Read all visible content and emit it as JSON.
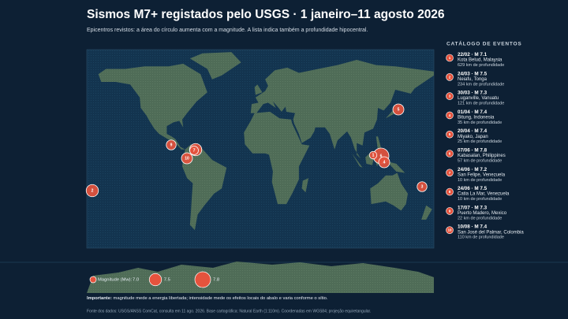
{
  "header": {
    "title": "Sismos M7+ registados pelo USGS · 1 janeiro–11 agosto 2026",
    "subtitle": "Epicentros revistos: a área do círculo aumenta com a magnitude. A lista indica também a profundidade hipocentral."
  },
  "catalog": {
    "title": "CATÁLOGO DE EVENTOS",
    "separator": "·",
    "events": [
      {
        "number": "1",
        "date": "22/02",
        "magnitude": {
          "value": 7.1,
          "label": "M 7.1"
        },
        "place": "Kota Belud, Malaysia",
        "depth": "629 km de profundidade"
      },
      {
        "number": "2",
        "date": "24/03",
        "magnitude": {
          "value": 7.5,
          "label": "M 7.5"
        },
        "place": "Neiafu, Tonga",
        "depth": "234 km de profundidade"
      },
      {
        "number": "3",
        "date": "30/03",
        "magnitude": {
          "value": 7.3,
          "label": "M 7.3"
        },
        "place": "Luganville, Vanuatu",
        "depth": "121 km de profundidade"
      },
      {
        "number": "4",
        "date": "01/04",
        "magnitude": {
          "value": 7.4,
          "label": "M 7.4"
        },
        "place": "Bitung, Indonesia",
        "depth": "35 km de profundidade"
      },
      {
        "number": "5",
        "date": "20/04",
        "magnitude": {
          "value": 7.4,
          "label": "M 7.4"
        },
        "place": "Miyako, Japan",
        "depth": "25 km de profundidade"
      },
      {
        "number": "6",
        "date": "07/06",
        "magnitude": {
          "value": 7.8,
          "label": "M 7.8"
        },
        "place": "Kabasalan, Philippines",
        "depth": "57 km de profundidade"
      },
      {
        "number": "7",
        "date": "24/06",
        "magnitude": {
          "value": 7.2,
          "label": "M 7.2"
        },
        "place": "San Felipe, Venezuela",
        "depth": "10 km de profundidade"
      },
      {
        "number": "8",
        "date": "24/06",
        "magnitude": {
          "value": 7.5,
          "label": "M 7.5"
        },
        "place": "Catia La Mar, Venezuela",
        "depth": "10 km de profundidade"
      },
      {
        "number": "9",
        "date": "17/07",
        "magnitude": {
          "value": 7.3,
          "label": "M 7.3"
        },
        "place": "Puerto Madero, Mexico",
        "depth": "22 km de profundidade"
      },
      {
        "number": "10",
        "date": "10/08",
        "magnitude": {
          "value": 7.4,
          "label": "M 7.4"
        },
        "place": "San José del Palmar, Colombia",
        "depth": "110 km de profundidade"
      }
    ]
  },
  "legend": {
    "title": "Magnitude (Mw):",
    "sizes": [
      {
        "value": 7.0,
        "label": "7.0"
      },
      7.5,
      7.8
    ]
  },
  "note": {
    "lead": "Importante:",
    "text": "magnitude mede a energia libertada; intensidade mede os efeitos locais do abalo e varia conforme o sítio."
  },
  "source": "Fonte dos dados: USGS/ANSS ComCat, consulta em 11 ago. 2026. Base cartográfica: Natural Earth (1:110m). Coordenadas em WGS84; projeção equiretangular."
}
